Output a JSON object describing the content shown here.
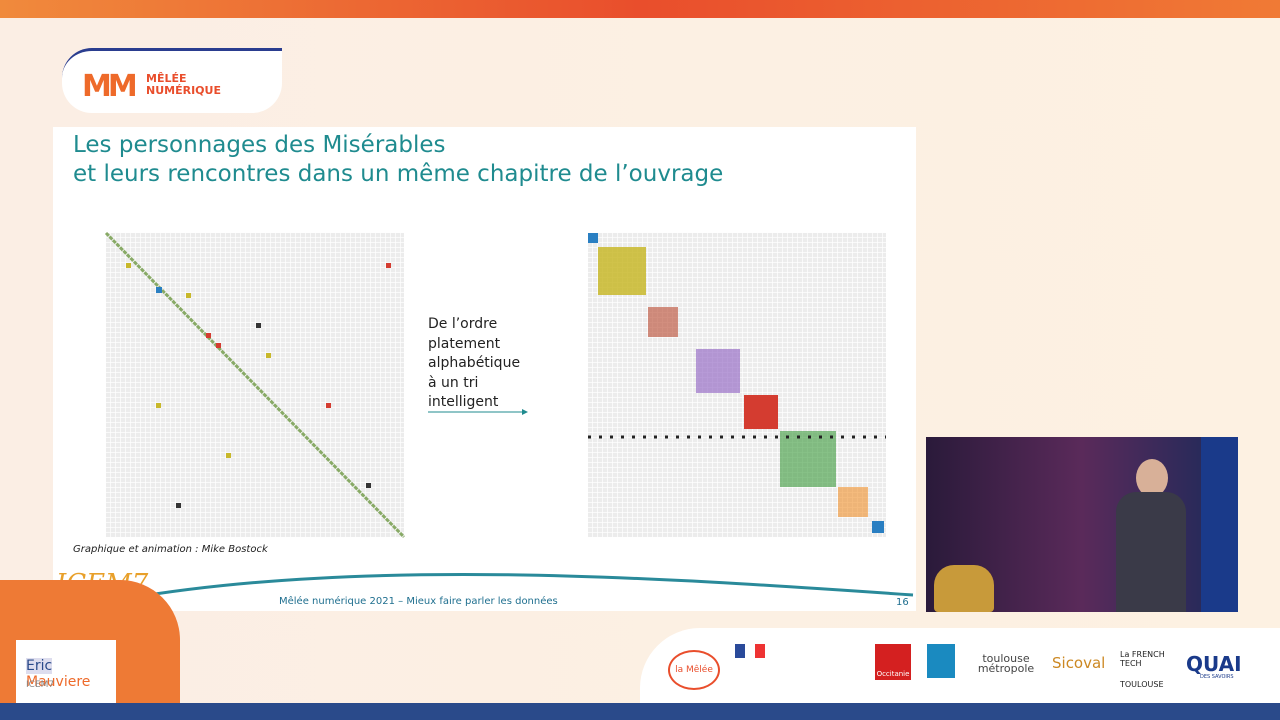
{
  "header": {
    "logo_line1": "MÊLÉE",
    "logo_line2": "NUMÉRIQUE"
  },
  "slide": {
    "title_lines": [
      "Les personnages des Misérables",
      "et leurs rencontres dans un même chapitre de l’ouvrage"
    ],
    "note_lines": [
      "De l’ordre",
      "platement",
      "alphabétique",
      "à un tri",
      "intelligent"
    ],
    "caption": "Graphique et animation : Mike Bostock",
    "logo": "ICEM7",
    "footer": "Mêlée numérique 2021 – Mieux faire parler les données",
    "page": "16"
  },
  "speaker": {
    "first_name": "Eric",
    "last_name": "Mauviere",
    "org": "ICEM7"
  },
  "sponsors": [
    "la Mêlée",
    "Occitanie",
    "toulouse métropole",
    "Sicoval",
    "La FRENCH TECH",
    "TOULOUSE",
    "QUAI",
    "DES SAVOIRS"
  ]
}
